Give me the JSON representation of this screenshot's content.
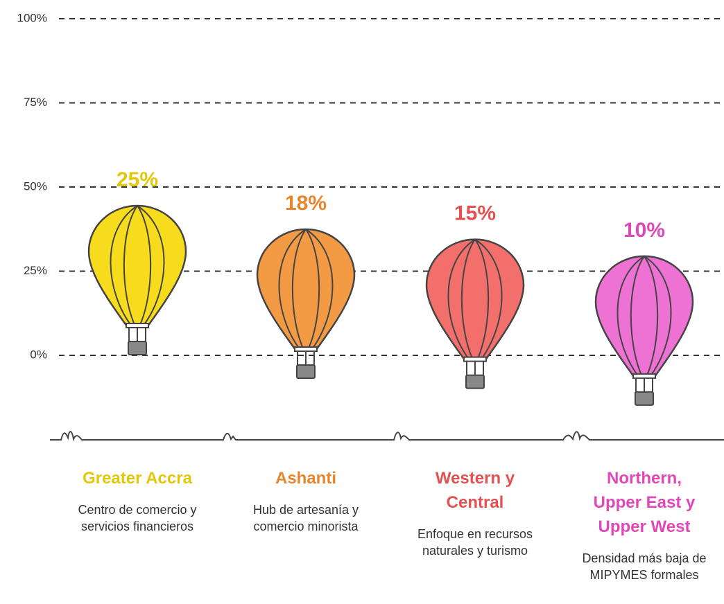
{
  "chart_data": {
    "type": "balloon",
    "categories": [
      "Greater Accra",
      "Ashanti",
      "Western y Central",
      "Northern, Upper East y Upper West"
    ],
    "descriptions": [
      "Centro de comercio y servicios financieros",
      "Hub de artesanía y comercio minorista",
      "Enfoque en recursos naturales y turismo",
      "Densidad más baja de MIPYMES formales"
    ],
    "values": [
      25,
      18,
      15,
      10
    ],
    "value_labels": [
      "25%",
      "18%",
      "15%",
      "10%"
    ],
    "colors": [
      "#f7dc1e",
      "#f39a45",
      "#f26f6c",
      "#ee72d4"
    ],
    "ylim": [
      0,
      100
    ],
    "yticks": [
      {
        "value": 0,
        "label": "0%"
      },
      {
        "value": 25,
        "label": "25%"
      },
      {
        "value": 50,
        "label": "50%"
      },
      {
        "value": 75,
        "label": "75%"
      },
      {
        "value": 100,
        "label": "100%"
      }
    ],
    "grid": true
  }
}
